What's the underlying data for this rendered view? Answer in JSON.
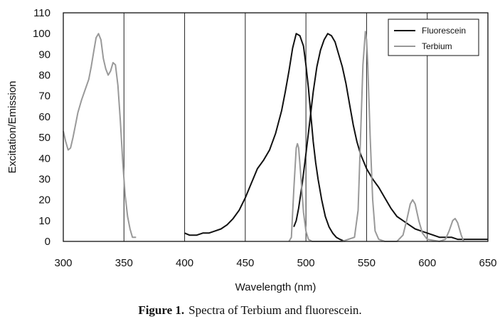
{
  "chart_data": {
    "type": "line",
    "xlabel": "Wavelength (nm)",
    "ylabel": "Excitation/Emission",
    "xlim": [
      300,
      650
    ],
    "ylim": [
      0,
      110
    ],
    "xticks": [
      300,
      350,
      400,
      450,
      500,
      550,
      600,
      650
    ],
    "yticks": [
      0,
      10,
      20,
      30,
      40,
      50,
      60,
      70,
      80,
      90,
      100,
      110
    ],
    "grid": "vertical",
    "legend_position": "top-right",
    "series": [
      {
        "name": "Fluorescein",
        "color": "#111111",
        "segments": [
          [
            [
              490,
              7
            ],
            [
              492,
              10
            ],
            [
              494,
              16
            ],
            [
              497,
              28
            ],
            [
              500,
              42
            ],
            [
              503,
              57
            ],
            [
              506,
              72
            ],
            [
              509,
              84
            ],
            [
              512,
              92
            ],
            [
              515,
              97
            ],
            [
              518,
              100
            ],
            [
              521,
              99
            ],
            [
              524,
              96
            ],
            [
              527,
              90
            ],
            [
              530,
              84
            ],
            [
              533,
              76
            ],
            [
              536,
              66
            ],
            [
              539,
              56
            ],
            [
              542,
              48
            ],
            [
              545,
              42
            ],
            [
              550,
              35
            ],
            [
              555,
              30
            ],
            [
              560,
              26
            ],
            [
              565,
              21
            ],
            [
              570,
              16
            ],
            [
              575,
              12
            ],
            [
              580,
              10
            ],
            [
              585,
              8
            ],
            [
              590,
              6
            ],
            [
              595,
              5
            ],
            [
              600,
              4
            ],
            [
              605,
              3
            ],
            [
              610,
              2
            ],
            [
              620,
              2
            ],
            [
              625,
              1
            ],
            [
              630,
              1
            ],
            [
              640,
              1
            ],
            [
              650,
              1
            ]
          ],
          [
            [
              400,
              4
            ],
            [
              404,
              3
            ],
            [
              410,
              3
            ],
            [
              415,
              4
            ],
            [
              420,
              4
            ],
            [
              425,
              5
            ],
            [
              430,
              6
            ],
            [
              435,
              8
            ],
            [
              440,
              11
            ],
            [
              445,
              15
            ],
            [
              450,
              21
            ],
            [
              455,
              28
            ],
            [
              460,
              35
            ],
            [
              465,
              39
            ],
            [
              470,
              44
            ],
            [
              475,
              52
            ],
            [
              480,
              63
            ],
            [
              483,
              72
            ],
            [
              486,
              82
            ],
            [
              489,
              93
            ],
            [
              492,
              100
            ],
            [
              495,
              99
            ],
            [
              498,
              94
            ],
            [
              500,
              85
            ],
            [
              502,
              74
            ],
            [
              504,
              61
            ],
            [
              506,
              48
            ],
            [
              508,
              38
            ],
            [
              510,
              30
            ],
            [
              513,
              20
            ],
            [
              516,
              12
            ],
            [
              519,
              7
            ],
            [
              522,
              4
            ],
            [
              525,
              2
            ],
            [
              528,
              1
            ],
            [
              532,
              0
            ]
          ]
        ]
      },
      {
        "name": "Terbium",
        "color": "#999999",
        "segments": [
          [
            [
              300,
              53
            ],
            [
              302,
              48
            ],
            [
              304,
              44
            ],
            [
              306,
              45
            ],
            [
              308,
              50
            ],
            [
              310,
              56
            ],
            [
              312,
              62
            ],
            [
              315,
              68
            ],
            [
              318,
              73
            ],
            [
              321,
              78
            ],
            [
              323,
              84
            ],
            [
              325,
              91
            ],
            [
              327,
              98
            ],
            [
              329,
              100
            ],
            [
              331,
              97
            ],
            [
              333,
              88
            ],
            [
              335,
              83
            ],
            [
              337,
              80
            ],
            [
              339,
              82
            ],
            [
              341,
              86
            ],
            [
              343,
              85
            ],
            [
              345,
              75
            ],
            [
              347,
              58
            ],
            [
              349,
              38
            ],
            [
              351,
              22
            ],
            [
              353,
              12
            ],
            [
              355,
              6
            ],
            [
              357,
              2
            ],
            [
              360,
              2
            ]
          ],
          [
            [
              486,
              0
            ],
            [
              488,
              2
            ],
            [
              490,
              25
            ],
            [
              492,
              45
            ],
            [
              493,
              47
            ],
            [
              494,
              45
            ],
            [
              496,
              30
            ],
            [
              498,
              14
            ],
            [
              500,
              5
            ],
            [
              502,
              1
            ],
            [
              505,
              0
            ],
            [
              520,
              0
            ],
            [
              530,
              0
            ],
            [
              540,
              2
            ],
            [
              543,
              15
            ],
            [
              545,
              50
            ],
            [
              547,
              85
            ],
            [
              549,
              101
            ],
            [
              550,
              97
            ],
            [
              551,
              85
            ],
            [
              553,
              50
            ],
            [
              555,
              20
            ],
            [
              557,
              5
            ],
            [
              560,
              1
            ],
            [
              565,
              0
            ],
            [
              575,
              0
            ],
            [
              580,
              3
            ],
            [
              583,
              10
            ],
            [
              586,
              18
            ],
            [
              588,
              20
            ],
            [
              590,
              18
            ],
            [
              593,
              10
            ],
            [
              596,
              4
            ],
            [
              600,
              1
            ],
            [
              610,
              0
            ],
            [
              615,
              1
            ],
            [
              618,
              5
            ],
            [
              621,
              10
            ],
            [
              623,
              11
            ],
            [
              625,
              9
            ],
            [
              628,
              3
            ],
            [
              630,
              0
            ]
          ]
        ]
      }
    ]
  },
  "caption": {
    "figure_label": "Figure 1.",
    "text": "Spectra of Terbium and fluorescein."
  }
}
